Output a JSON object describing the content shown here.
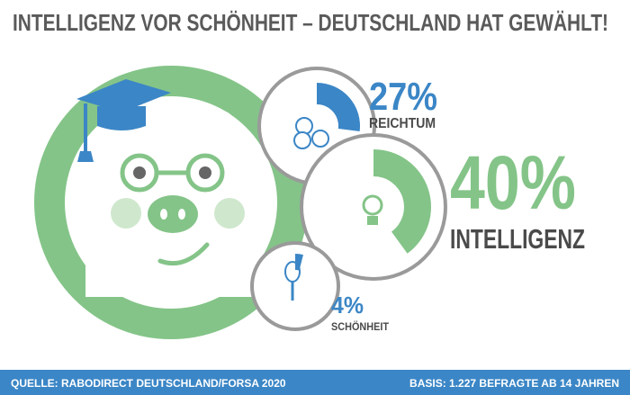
{
  "chart_data": {
    "type": "radial",
    "title": "INTELLIGENZ VOR SCHÖNHEIT – DEUTSCHLAND HAT GEWÄHLT!",
    "categories": [
      "REICHTUM",
      "INTELLIGENZ",
      "SCHÖNHEIT"
    ],
    "values": [
      27,
      40,
      4
    ],
    "value_labels": [
      "27%",
      "40%",
      "4%"
    ],
    "colors": [
      "#3b86c6",
      "#84c488",
      "#3b86c6"
    ],
    "source": "QUELLE: RABODIRECT DEUTSCHLAND/FORSA 2020",
    "note": "BASIS: 1.227 BEFRAGTE AB 14 JAHREN"
  }
}
